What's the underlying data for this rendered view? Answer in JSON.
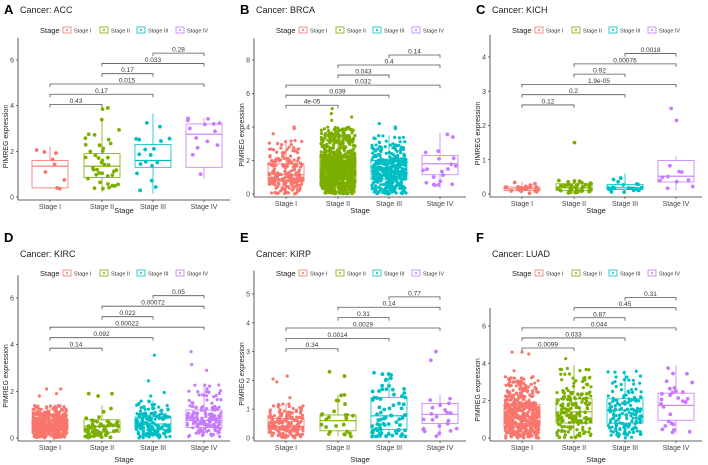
{
  "colors": {
    "Stage I": "#F8766D",
    "Stage II": "#7CAE00",
    "Stage III": "#00BFC4",
    "Stage IV": "#C77CFF"
  },
  "chart_data": [
    {
      "type": "box",
      "letter": "A",
      "title": "Cancer: ACC",
      "legend_title": "Stage",
      "xlabel": "Stage",
      "ylabel": "PIMREG expression",
      "categories": [
        "Stage I",
        "Stage II",
        "Stage III",
        "Stage IV"
      ],
      "yticks": [
        0,
        2,
        4,
        6
      ],
      "ylim": [
        0,
        6.5
      ],
      "boxes": [
        {
          "q1": 0.4,
          "median": 1.35,
          "q3": 1.6,
          "lo": 0.35,
          "hi": 2.2,
          "n": 9,
          "outliers": []
        },
        {
          "q1": 0.85,
          "median": 1.35,
          "q3": 1.9,
          "lo": 0.2,
          "hi": 3.4,
          "n": 40,
          "outliers": [
            3.9,
            3.85
          ]
        },
        {
          "q1": 1.3,
          "median": 1.6,
          "q3": 2.3,
          "lo": 0.15,
          "hi": 3.65,
          "n": 18,
          "outliers": []
        },
        {
          "q1": 1.3,
          "median": 2.75,
          "q3": 3.2,
          "lo": 0.8,
          "hi": 3.45,
          "n": 14,
          "outliers": []
        }
      ],
      "comparisons": [
        {
          "from": 0,
          "to": 1,
          "p": "0.43",
          "y": 4.05
        },
        {
          "from": 0,
          "to": 2,
          "p": "0.17",
          "y": 4.5
        },
        {
          "from": 0,
          "to": 3,
          "p": "0.015",
          "y": 4.95
        },
        {
          "from": 1,
          "to": 2,
          "p": "0.17",
          "y": 5.4
        },
        {
          "from": 1,
          "to": 3,
          "p": "0.033",
          "y": 5.85
        },
        {
          "from": 2,
          "to": 3,
          "p": "0.28",
          "y": 6.3
        }
      ]
    },
    {
      "type": "box",
      "letter": "B",
      "title": "Cancer: BRCA",
      "legend_title": "Stage",
      "xlabel": "Stage",
      "ylabel": "PIMREG expression",
      "categories": [
        "Stage I",
        "Stage II",
        "Stage III",
        "Stage IV"
      ],
      "yticks": [
        0,
        2,
        4,
        6,
        8
      ],
      "ylim": [
        0,
        8.6
      ],
      "boxes": [
        {
          "q1": 0.75,
          "median": 1.15,
          "q3": 1.8,
          "lo": 0.0,
          "hi": 3.2,
          "n": 220,
          "outliers": [
            4.0,
            3.9,
            3.6
          ]
        },
        {
          "q1": 0.9,
          "median": 1.55,
          "q3": 2.2,
          "lo": 0.0,
          "hi": 4.0,
          "n": 900,
          "outliers": [
            5.1,
            4.8,
            4.6,
            4.4
          ]
        },
        {
          "q1": 0.85,
          "median": 1.4,
          "q3": 2.0,
          "lo": 0.0,
          "hi": 3.5,
          "n": 380,
          "outliers": [
            4.2,
            4.0,
            3.9
          ]
        },
        {
          "q1": 1.15,
          "median": 1.8,
          "q3": 2.3,
          "lo": 0.35,
          "hi": 3.65,
          "n": 20,
          "outliers": []
        }
      ],
      "comparisons": [
        {
          "from": 0,
          "to": 1,
          "p": "4e-05",
          "y": 5.3
        },
        {
          "from": 0,
          "to": 2,
          "p": "0.039",
          "y": 5.9
        },
        {
          "from": 0,
          "to": 3,
          "p": "0.032",
          "y": 6.5
        },
        {
          "from": 1,
          "to": 2,
          "p": "0.043",
          "y": 7.1
        },
        {
          "from": 1,
          "to": 3,
          "p": "0.4",
          "y": 7.7
        },
        {
          "from": 2,
          "to": 3,
          "p": "0.14",
          "y": 8.3
        }
      ]
    },
    {
      "type": "box",
      "letter": "C",
      "title": "Cancer: KICH",
      "legend_title": "Stage",
      "xlabel": "Stage",
      "ylabel": "PIMREG expression",
      "categories": [
        "Stage I",
        "Stage II",
        "Stage III",
        "Stage IV"
      ],
      "yticks": [
        0,
        1,
        2,
        3,
        4
      ],
      "ylim": [
        0,
        4.3
      ],
      "boxes": [
        {
          "q1": 0.1,
          "median": 0.15,
          "q3": 0.2,
          "lo": 0.02,
          "hi": 0.35,
          "n": 25,
          "outliers": []
        },
        {
          "q1": 0.1,
          "median": 0.18,
          "q3": 0.3,
          "lo": 0.03,
          "hi": 0.45,
          "n": 40,
          "outliers": [
            1.5
          ]
        },
        {
          "q1": 0.13,
          "median": 0.18,
          "q3": 0.28,
          "lo": 0.05,
          "hi": 0.6,
          "n": 20,
          "outliers": []
        },
        {
          "q1": 0.35,
          "median": 0.52,
          "q3": 0.98,
          "lo": 0.1,
          "hi": 1.1,
          "n": 10,
          "outliers": [
            2.15,
            2.5
          ]
        }
      ],
      "comparisons": [
        {
          "from": 0,
          "to": 1,
          "p": "0.12",
          "y": 2.6
        },
        {
          "from": 0,
          "to": 2,
          "p": "0.2",
          "y": 2.9
        },
        {
          "from": 0,
          "to": 3,
          "p": "1.9e-05",
          "y": 3.2
        },
        {
          "from": 1,
          "to": 2,
          "p": "0.92",
          "y": 3.5
        },
        {
          "from": 1,
          "to": 3,
          "p": "0.00076",
          "y": 3.8
        },
        {
          "from": 2,
          "to": 3,
          "p": "0.0018",
          "y": 4.1
        }
      ]
    },
    {
      "type": "box",
      "letter": "D",
      "title": "Cancer: KIRC",
      "legend_title": "Stage",
      "xlabel": "Stage",
      "ylabel": "PIMREG expression",
      "categories": [
        "Stage I",
        "Stage II",
        "Stage III",
        "Stage IV"
      ],
      "yticks": [
        0,
        2,
        4,
        6
      ],
      "ylim": [
        0,
        6.4
      ],
      "boxes": [
        {
          "q1": 0.35,
          "median": 0.55,
          "q3": 0.8,
          "lo": 0.0,
          "hi": 1.4,
          "n": 450,
          "outliers": [
            2.1,
            2.1,
            1.9,
            1.8
          ]
        },
        {
          "q1": 0.25,
          "median": 0.5,
          "q3": 0.78,
          "lo": 0.0,
          "hi": 1.4,
          "n": 60,
          "outliers": [
            1.9,
            1.9,
            1.8
          ]
        },
        {
          "q1": 0.35,
          "median": 0.6,
          "q3": 0.9,
          "lo": 0.0,
          "hi": 1.6,
          "n": 170,
          "outliers": [
            3.55,
            2.45,
            1.95,
            1.8
          ]
        },
        {
          "q1": 0.45,
          "median": 0.75,
          "q3": 1.2,
          "lo": 0.05,
          "hi": 2.3,
          "n": 160,
          "outliers": [
            3.7,
            3.15,
            2.9
          ]
        }
      ],
      "comparisons": [
        {
          "from": 0,
          "to": 1,
          "p": "0.14",
          "y": 3.85
        },
        {
          "from": 0,
          "to": 2,
          "p": "0.092",
          "y": 4.3
        },
        {
          "from": 0,
          "to": 3,
          "p": "0.00022",
          "y": 4.75
        },
        {
          "from": 1,
          "to": 2,
          "p": "0.022",
          "y": 5.2
        },
        {
          "from": 1,
          "to": 3,
          "p": "0.00072",
          "y": 5.65
        },
        {
          "from": 2,
          "to": 3,
          "p": "0.05",
          "y": 6.1
        }
      ]
    },
    {
      "type": "box",
      "letter": "E",
      "title": "Cancer: KIRP",
      "legend_title": "Stage",
      "xlabel": "Stage",
      "ylabel": "PIMREG expression",
      "categories": [
        "Stage I",
        "Stage II",
        "Stage III",
        "Stage IV"
      ],
      "yticks": [
        0,
        1,
        2,
        3,
        4,
        5
      ],
      "ylim": [
        0,
        5.1
      ],
      "boxes": [
        {
          "q1": 0.3,
          "median": 0.4,
          "q3": 0.68,
          "lo": 0.0,
          "hi": 1.2,
          "n": 180,
          "outliers": [
            2.15,
            2.05,
            1.95,
            1.4
          ]
        },
        {
          "q1": 0.25,
          "median": 0.6,
          "q3": 0.8,
          "lo": 0.05,
          "hi": 1.5,
          "n": 25,
          "outliers": [
            2.3,
            2.15
          ]
        },
        {
          "q1": 0.3,
          "median": 0.77,
          "q3": 1.4,
          "lo": 0.05,
          "hi": 2.3,
          "n": 75,
          "outliers": []
        },
        {
          "q1": 0.5,
          "median": 0.82,
          "q3": 1.2,
          "lo": 0.05,
          "hi": 1.5,
          "n": 22,
          "outliers": [
            3.0,
            2.7
          ]
        }
      ],
      "comparisons": [
        {
          "from": 0,
          "to": 1,
          "p": "0.34",
          "y": 3.1
        },
        {
          "from": 0,
          "to": 2,
          "p": "0.0014",
          "y": 3.46
        },
        {
          "from": 0,
          "to": 3,
          "p": "0.0029",
          "y": 3.82
        },
        {
          "from": 1,
          "to": 2,
          "p": "0.31",
          "y": 4.18
        },
        {
          "from": 1,
          "to": 3,
          "p": "0.14",
          "y": 4.54
        },
        {
          "from": 2,
          "to": 3,
          "p": "0.77",
          "y": 4.9
        }
      ]
    },
    {
      "type": "box",
      "letter": "F",
      "title": "Cancer: LUAD",
      "legend_title": "Stage",
      "xlabel": "Stage",
      "ylabel": "PIMREG expression",
      "categories": [
        "Stage I",
        "Stage II",
        "Stage III",
        "Stage IV"
      ],
      "yticks": [
        0,
        2,
        4,
        6
      ],
      "ylim": [
        0,
        7.9
      ],
      "boxes": [
        {
          "q1": 0.6,
          "median": 1.15,
          "q3": 1.8,
          "lo": 0.0,
          "hi": 3.3,
          "n": 450,
          "outliers": [
            4.6,
            4.6,
            4.5,
            3.6
          ]
        },
        {
          "q1": 0.8,
          "median": 1.4,
          "q3": 2.1,
          "lo": 0.0,
          "hi": 3.9,
          "n": 200,
          "outliers": [
            4.25
          ]
        },
        {
          "q1": 0.8,
          "median": 1.5,
          "q3": 2.1,
          "lo": 0.0,
          "hi": 3.6,
          "n": 160,
          "outliers": []
        },
        {
          "q1": 0.95,
          "median": 1.75,
          "q3": 2.4,
          "lo": 0.25,
          "hi": 3.9,
          "n": 28,
          "outliers": []
        }
      ],
      "comparisons": [
        {
          "from": 0,
          "to": 1,
          "p": "0.0099",
          "y": 4.82
        },
        {
          "from": 0,
          "to": 2,
          "p": "0.033",
          "y": 5.36
        },
        {
          "from": 0,
          "to": 3,
          "p": "0.044",
          "y": 5.9
        },
        {
          "from": 1,
          "to": 2,
          "p": "0.87",
          "y": 6.44
        },
        {
          "from": 1,
          "to": 3,
          "p": "0.45",
          "y": 6.98
        },
        {
          "from": 2,
          "to": 3,
          "p": "0.31",
          "y": 7.52
        }
      ]
    }
  ]
}
